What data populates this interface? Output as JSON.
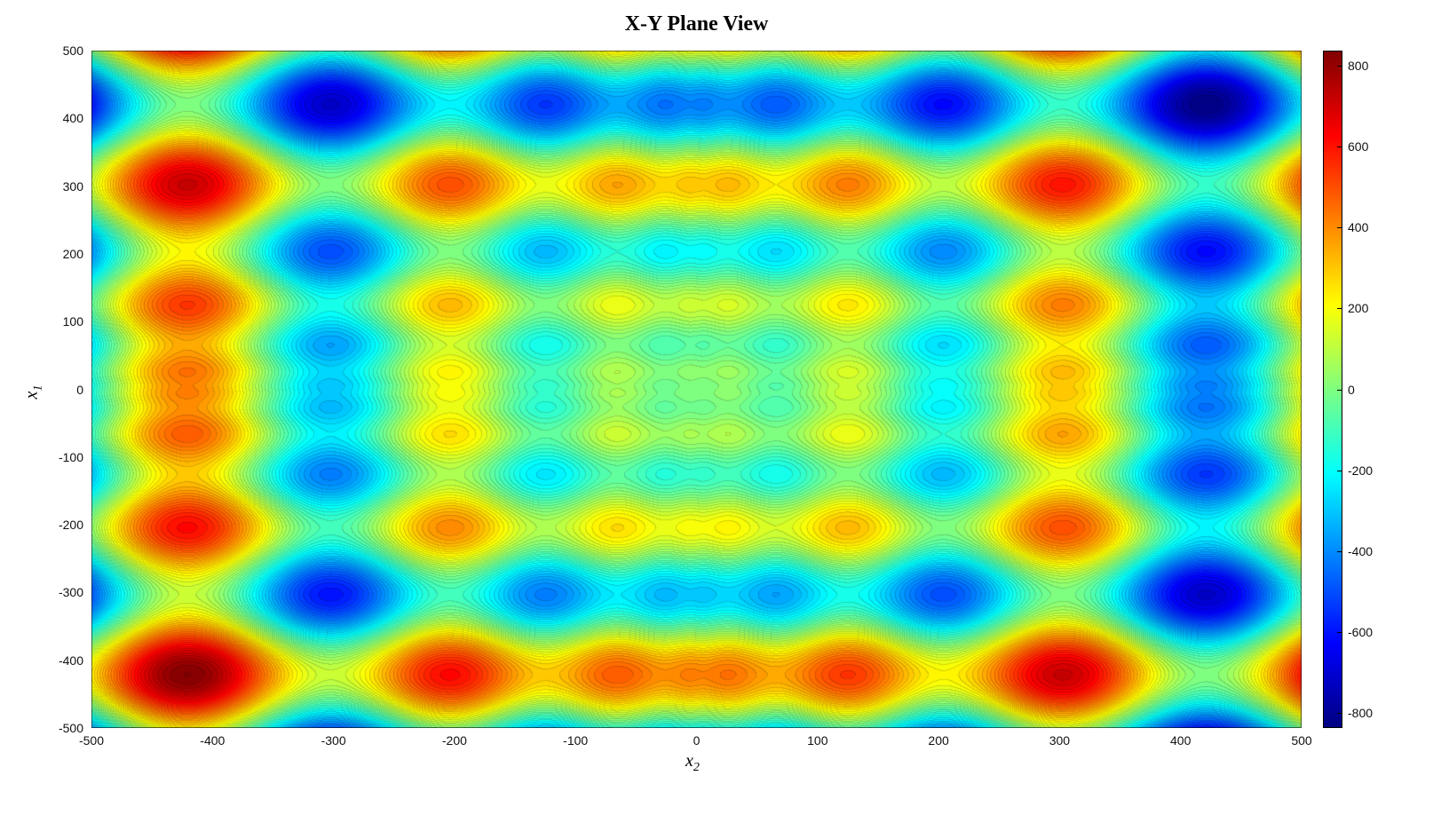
{
  "title": "X-Y Plane View",
  "axes": {
    "xlabel_base": "x",
    "xlabel_sub": "2",
    "ylabel_base": "x",
    "ylabel_sub": "1",
    "x_tick_labels": [
      "-500",
      "-400",
      "-300",
      "-200",
      "-100",
      "0",
      "100",
      "200",
      "300",
      "400",
      "500"
    ],
    "y_tick_labels": [
      "500",
      "400",
      "300",
      "200",
      "100",
      "0",
      "-100",
      "-200",
      "-300",
      "-400",
      "-500"
    ]
  },
  "colorbar": {
    "tick_labels": [
      "800",
      "600",
      "400",
      "200",
      "0",
      "-200",
      "-400",
      "-600",
      "-800"
    ],
    "tick_values": [
      800,
      600,
      400,
      200,
      0,
      -200,
      -400,
      -600,
      -800
    ]
  },
  "chart_data": {
    "type": "heatmap",
    "title": "X-Y Plane View",
    "xlabel": "x_2",
    "ylabel": "x_1",
    "x_range": [
      -500,
      500
    ],
    "y_range": [
      -500,
      500
    ],
    "x_ticks": [
      -500,
      -400,
      -300,
      -200,
      -100,
      0,
      100,
      200,
      300,
      400,
      500
    ],
    "y_ticks": [
      -500,
      -400,
      -300,
      -200,
      -100,
      0,
      100,
      200,
      300,
      400,
      500
    ],
    "z_function_desc": "Schwefel-type surface f(x1,x2) = -x1*sin(sqrt(|x1|)) - x2*sin(sqrt(|x2|)); max ~ +838 at (-421,-421), min ~ -838 at (421,421)",
    "z_formula_js": "-(x1*Math.sin(Math.sqrt(Math.abs(x1))) + x2*Math.sin(Math.sqrt(Math.abs(x2))))",
    "clim": [
      -838,
      838
    ],
    "colorbar_ticks": [
      800,
      600,
      400,
      200,
      0,
      -200,
      -400,
      -600,
      -800
    ],
    "contour_level_step": 25,
    "colormap": "jet",
    "legend_position": "right-colorbar",
    "grid": false,
    "sample_grid": {
      "x2_values": [
        -500,
        -400,
        -300,
        -200,
        -100,
        0,
        100,
        200,
        300,
        400,
        500
      ],
      "x1_values": [
        500,
        400,
        300,
        200,
        100,
        0,
        -100,
        -200,
        -300,
        -400,
        -500
      ],
      "z_rows": [
        [
          0.0,
          545.8,
          -119.1,
          380.6,
          126.2,
          180.6,
          235.0,
          -19.4,
          480.3,
          -184.6,
          361.2
        ],
        [
          -545.8,
          0.0,
          -664.9,
          -165.2,
          -419.6,
          -365.2,
          -310.8,
          -565.2,
          -65.5,
          -730.4,
          -184.6
        ],
        [
          119.1,
          664.9,
          0.0,
          499.7,
          245.3,
          299.7,
          354.1,
          99.7,
          599.4,
          -65.5,
          480.3
        ],
        [
          -380.6,
          165.2,
          -499.7,
          0.0,
          -254.4,
          -200.0,
          -145.6,
          -400.0,
          99.7,
          -565.2,
          -19.4
        ],
        [
          -126.2,
          419.6,
          -245.3,
          254.4,
          0.0,
          54.4,
          108.8,
          -145.6,
          354.1,
          -310.8,
          235.0
        ],
        [
          -180.6,
          365.2,
          -299.7,
          200.0,
          -54.4,
          0.0,
          54.4,
          -200.0,
          299.7,
          -365.2,
          180.6
        ],
        [
          -235.0,
          310.8,
          -354.1,
          145.6,
          -108.8,
          -54.4,
          0.0,
          -254.4,
          245.3,
          -419.6,
          126.2
        ],
        [
          19.4,
          565.2,
          -99.7,
          400.0,
          145.6,
          200.0,
          254.4,
          0.0,
          499.7,
          -165.2,
          380.6
        ],
        [
          -480.3,
          65.5,
          -599.4,
          -99.7,
          -354.1,
          -299.7,
          -245.3,
          -499.7,
          0.0,
          -664.9,
          -119.1
        ],
        [
          184.6,
          730.4,
          65.5,
          565.2,
          310.8,
          365.2,
          419.6,
          165.2,
          664.9,
          0.0,
          545.8
        ],
        [
          -361.2,
          184.6,
          -480.3,
          19.4,
          -235.0,
          -180.6,
          -126.2,
          -380.6,
          119.1,
          -545.8,
          0.0
        ]
      ]
    },
    "colors": {
      "colormap_low": "#00007f",
      "colormap_high": "#7f0000",
      "background": "#ffffff"
    }
  }
}
